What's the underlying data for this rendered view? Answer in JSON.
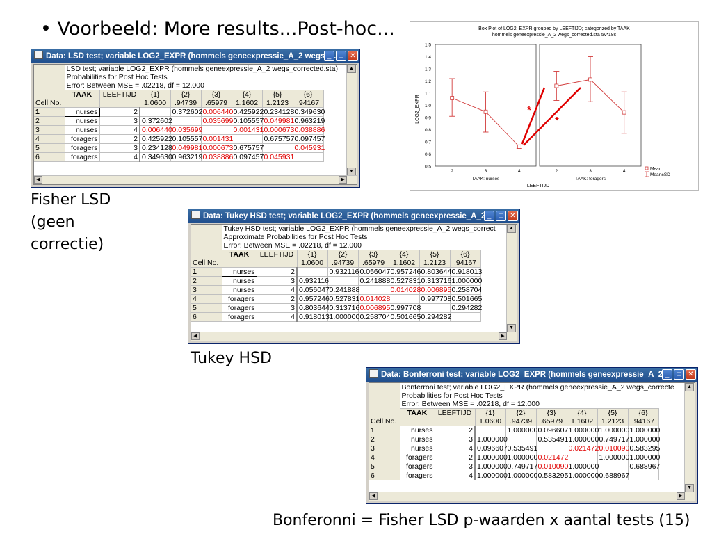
{
  "slide": {
    "title": "• Voorbeeld: More results...Post-hoc...",
    "caption_lsd": [
      "Fisher LSD",
      "(geen",
      "correctie)"
    ],
    "caption_tukey": "Tukey HSD",
    "caption_bonf": "Bonferonni = Fisher LSD p-waarden x aantal tests (15)"
  },
  "colors": {
    "accent_red": "#e00000",
    "chart_line": "#d23c3c",
    "title_blue": "#1f4d8c"
  },
  "icons": [
    "table-icon",
    "minimize-icon",
    "maximize-icon",
    "close-icon",
    "scroll-up-icon",
    "scroll-down-icon",
    "scroll-left-icon",
    "scroll-right-icon"
  ],
  "common": {
    "cell_no": "Cell No.",
    "col_taak": "TAAK",
    "col_leeftijd": "LEEFTIJD",
    "col_heads": [
      "{1}",
      "{2}",
      "{3}",
      "{4}",
      "{5}",
      "{6}"
    ],
    "col_means": [
      "1.0600",
      ".94739",
      ".65979",
      "1.1602",
      "1.2123",
      ".94167"
    ],
    "row_nums": [
      "1",
      "2",
      "3",
      "4",
      "5",
      "6"
    ],
    "taak": [
      "nurses",
      "nurses",
      "nurses",
      "foragers",
      "foragers",
      "foragers"
    ],
    "leeftijd": [
      "2",
      "3",
      "4",
      "2",
      "3",
      "4"
    ],
    "error_line": "Error: Between MSE = .02218, df = 12.000",
    "min_btn": "_",
    "max_btn": "□",
    "close_btn": "✕"
  },
  "lsd": {
    "window_title": "Data: LSD test; variable LOG2_EXPR (hommels geneexpressie_A_2 wegs_...",
    "header1": "LSD test; variable LOG2_EXPR (hommels geneexpressie_A_2 wegs_corrected.sta)",
    "header2": "Probabilities for Post Hoc Tests",
    "rows": [
      [
        "",
        "0.372602",
        "0.006440",
        "0.425922",
        "0.234128",
        "0.349630"
      ],
      [
        "0.372602",
        "",
        "0.035699",
        "0.105557",
        "0.049981",
        "0.963219"
      ],
      [
        "0.006440",
        "0.035699",
        "",
        "0.001431",
        "0.000673",
        "0.038886"
      ],
      [
        "0.425922",
        "0.105557",
        "0.001431",
        "",
        "0.675757",
        "0.097457"
      ],
      [
        "0.234128",
        "0.049981",
        "0.000673",
        "0.675757",
        "",
        "0.045931"
      ],
      [
        "0.349630",
        "0.963219",
        "0.038886",
        "0.097457",
        "0.045931",
        ""
      ]
    ]
  },
  "tukey": {
    "window_title": "Data: Tukey HSD test; variable LOG2_EXPR (hommels geneexpressie_A_2 ...",
    "header1": "Tukey HSD test; variable LOG2_EXPR (hommels geneexpressie_A_2 wegs_correct",
    "header2": "Approximate Probabilities for Post Hoc Tests",
    "rows": [
      [
        "",
        "0.932116",
        "0.056047",
        "0.957246",
        "0.803644",
        "0.918013"
      ],
      [
        "0.932116",
        "",
        "0.241888",
        "0.527831",
        "0.313716",
        "1.000000"
      ],
      [
        "0.056047",
        "0.241888",
        "",
        "0.014028",
        "0.006895",
        "0.258704"
      ],
      [
        "0.957246",
        "0.527831",
        "0.014028",
        "",
        "0.997708",
        "0.501665"
      ],
      [
        "0.803644",
        "0.313716",
        "0.006895",
        "0.997708",
        "",
        "0.294282"
      ],
      [
        "0.918013",
        "1.000000",
        "0.258704",
        "0.501665",
        "0.294282",
        ""
      ]
    ]
  },
  "bonf": {
    "window_title": "Data: Bonferroni test; variable LOG2_EXPR (hommels geneexpressie_A_2...",
    "header1": "Bonferroni test; variable LOG2_EXPR (hommels geneexpressie_A_2 wegs_correcte",
    "header2": "Probabilities for Post Hoc Tests",
    "rows": [
      [
        "",
        "1.000000",
        "0.096607",
        "1.000000",
        "1.000000",
        "1.000000"
      ],
      [
        "1.000000",
        "",
        "0.535491",
        "1.000000",
        "0.749717",
        "1.000000"
      ],
      [
        "0.096607",
        "0.535491",
        "",
        "0.021472",
        "0.010090",
        "0.583295"
      ],
      [
        "1.000000",
        "1.000000",
        "0.021472",
        "",
        "1.000000",
        "1.000000"
      ],
      [
        "1.000000",
        "0.749717",
        "0.010090",
        "1.000000",
        "",
        "0.688967"
      ],
      [
        "1.000000",
        "1.000000",
        "0.583295",
        "1.000000",
        "0.688967",
        ""
      ]
    ]
  },
  "chart_data": {
    "type": "line",
    "title": "Box Plot of LOG2_EXPR grouped by  LEEFTIJD; categorized by TAAK",
    "subtitle": "hommels geneexpressie_A_2 wegs_corrected.sta 5v*18c",
    "ylabel": "LOG2_EXPR",
    "xlabel": "LEEFTIJD",
    "ylim": [
      0.5,
      1.5
    ],
    "yticks": [
      "0.5",
      "0.6",
      "0.7",
      "0.8",
      "0.9",
      "1.0",
      "1.1",
      "1.2",
      "1.3",
      "1.4",
      "1.5"
    ],
    "categories": [
      "2",
      "3",
      "4"
    ],
    "panels": [
      {
        "label": "TAAK: nurses",
        "mean": [
          1.06,
          0.947,
          0.66
        ],
        "low": [
          0.91,
          0.78,
          0.645
        ],
        "high": [
          1.22,
          1.11,
          0.675
        ]
      },
      {
        "label": "TAAK: foragers",
        "mean": [
          1.16,
          1.212,
          0.942
        ],
        "low": [
          1.04,
          1.03,
          0.77
        ],
        "high": [
          1.28,
          1.4,
          1.11
        ]
      }
    ],
    "legend": [
      "Mean",
      "Mean±SD"
    ],
    "annotation": "*"
  }
}
